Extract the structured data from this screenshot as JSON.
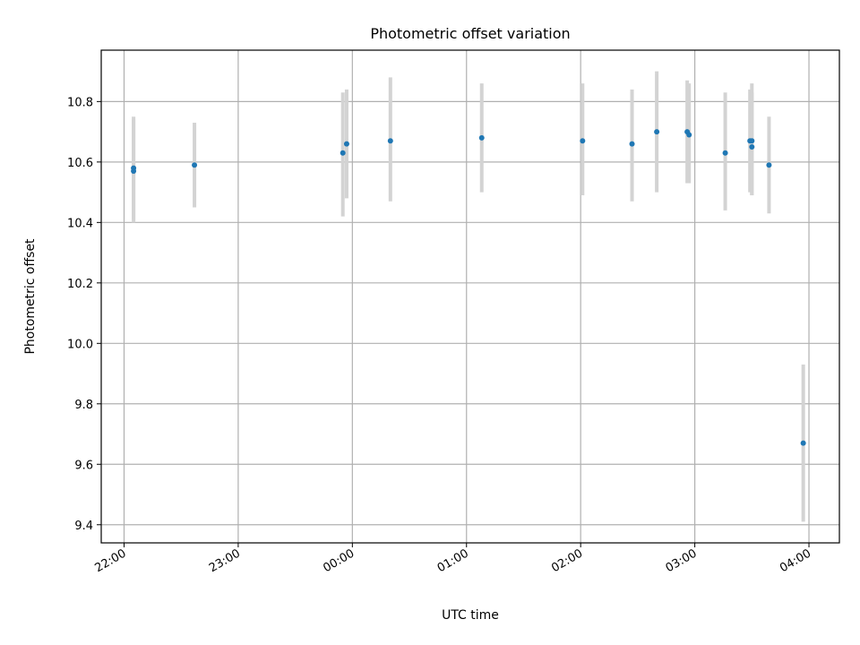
{
  "chart_data": {
    "type": "scatter",
    "title": "Photometric offset variation",
    "xlabel": "UTC time",
    "ylabel": "Photometric offset",
    "x_ticks": [
      "22:00",
      "23:00",
      "00:00",
      "01:00",
      "02:00",
      "03:00",
      "04:00"
    ],
    "y_ticks": [
      "9.4",
      "9.6",
      "9.8",
      "10.0",
      "10.2",
      "10.4",
      "10.6",
      "10.8"
    ],
    "x_start_time": "21:48",
    "x_end_time": "04:16",
    "ylim": [
      9.34,
      10.97
    ],
    "grid": true,
    "colors": {
      "point": "#1f77b4",
      "errorbar": "#d3d3d3",
      "grid": "#b0b0b0"
    },
    "series": [
      {
        "points": [
          {
            "time": "22:05",
            "y": 10.58,
            "err_low": 10.41,
            "err_high": 10.75
          },
          {
            "time": "22:05",
            "y": 10.57,
            "err_low": 10.4,
            "err_high": 10.74
          },
          {
            "time": "22:37",
            "y": 10.59,
            "err_low": 10.45,
            "err_high": 10.73
          },
          {
            "time": "23:55",
            "y": 10.63,
            "err_low": 10.42,
            "err_high": 10.83
          },
          {
            "time": "23:57",
            "y": 10.66,
            "err_low": 10.48,
            "err_high": 10.84
          },
          {
            "time": "00:20",
            "y": 10.67,
            "err_low": 10.47,
            "err_high": 10.88
          },
          {
            "time": "01:08",
            "y": 10.68,
            "err_low": 10.5,
            "err_high": 10.86
          },
          {
            "time": "02:01",
            "y": 10.67,
            "err_low": 10.49,
            "err_high": 10.86
          },
          {
            "time": "02:27",
            "y": 10.66,
            "err_low": 10.47,
            "err_high": 10.84
          },
          {
            "time": "02:40",
            "y": 10.7,
            "err_low": 10.5,
            "err_high": 10.9
          },
          {
            "time": "02:56",
            "y": 10.7,
            "err_low": 10.53,
            "err_high": 10.87
          },
          {
            "time": "02:57",
            "y": 10.69,
            "err_low": 10.53,
            "err_high": 10.86
          },
          {
            "time": "03:16",
            "y": 10.63,
            "err_low": 10.44,
            "err_high": 10.83
          },
          {
            "time": "03:29",
            "y": 10.67,
            "err_low": 10.5,
            "err_high": 10.84
          },
          {
            "time": "03:30",
            "y": 10.65,
            "err_low": 10.49,
            "err_high": 10.83
          },
          {
            "time": "03:30",
            "y": 10.67,
            "err_low": 10.49,
            "err_high": 10.86
          },
          {
            "time": "03:39",
            "y": 10.59,
            "err_low": 10.43,
            "err_high": 10.75
          },
          {
            "time": "03:57",
            "y": 9.67,
            "err_low": 9.41,
            "err_high": 9.93
          }
        ]
      }
    ]
  }
}
